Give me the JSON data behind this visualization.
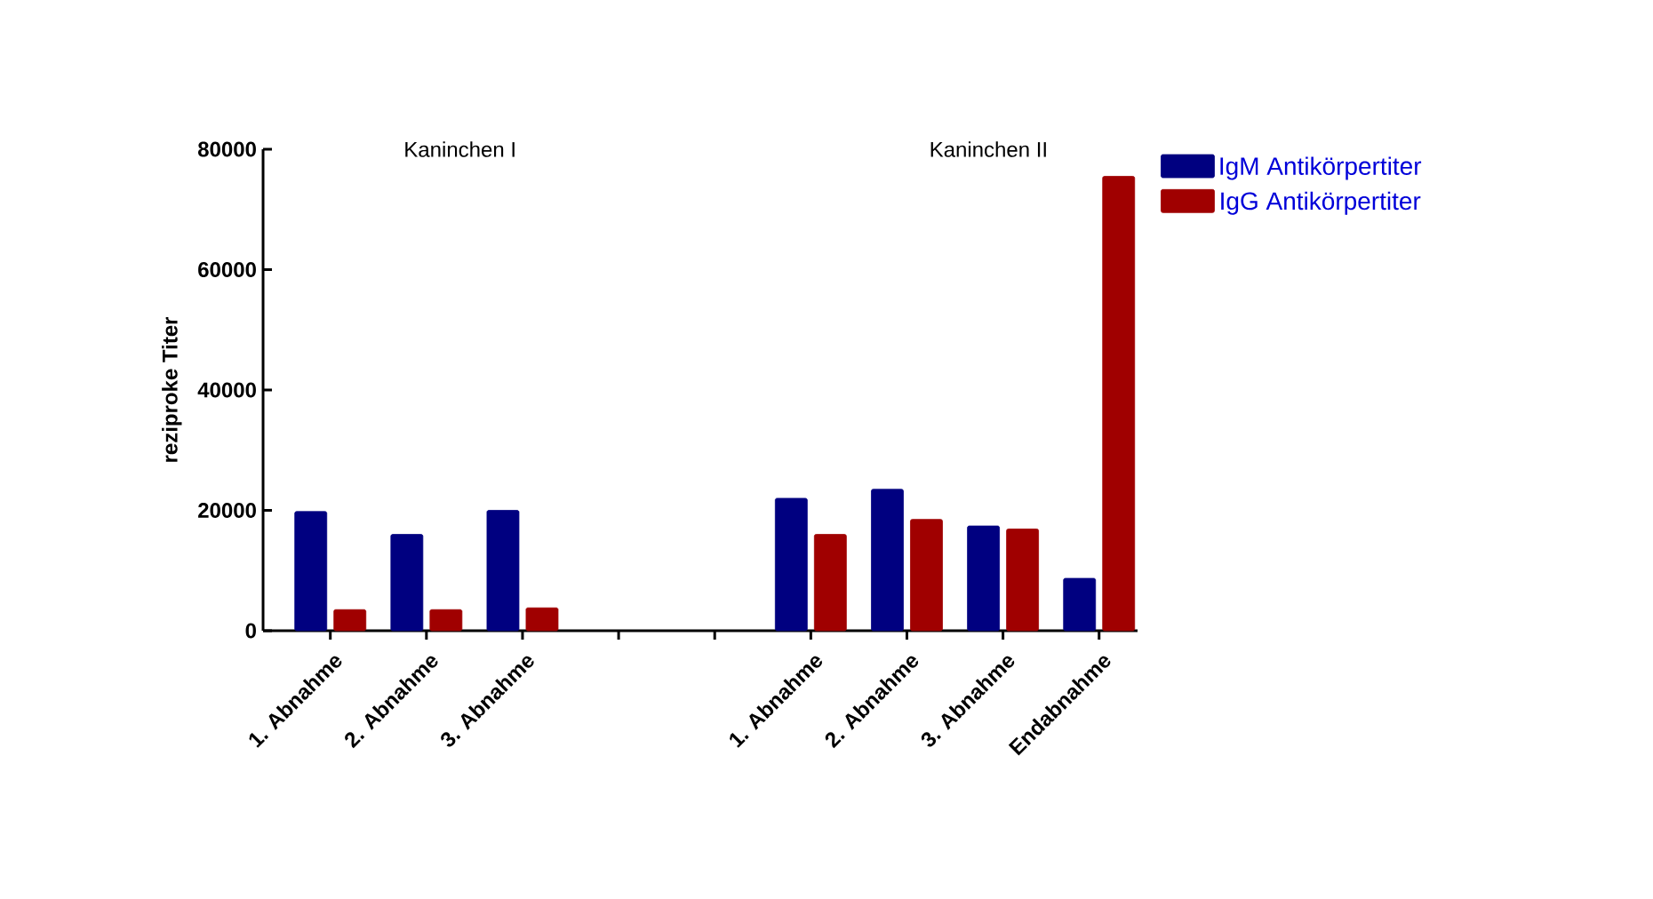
{
  "chart_data": {
    "type": "bar",
    "ylabel": "reziproke Titer",
    "categories": [
      "1. Abnahme",
      "2. Abnahme",
      "3. Abnahme",
      null,
      null,
      "1. Abnahme",
      "2. Abnahme",
      "3. Abnahme",
      "Endabnahme"
    ],
    "series": [
      {
        "name": "IgM Antikörpertiter",
        "color": "#000080",
        "values": [
          19800,
          16000,
          20000,
          null,
          null,
          22000,
          23500,
          17400,
          8700
        ]
      },
      {
        "name": "IgG Antikörpertiter",
        "color": "#a00000",
        "values": [
          3500,
          3500,
          3800,
          null,
          null,
          16000,
          18500,
          16900,
          75500
        ]
      }
    ],
    "annotations": [
      "Kaninchen I",
      "Kaninchen II"
    ],
    "ylim": [
      0,
      80000
    ],
    "yticks": [
      0,
      20000,
      40000,
      60000,
      80000
    ],
    "grid": false,
    "legend": "top right"
  }
}
